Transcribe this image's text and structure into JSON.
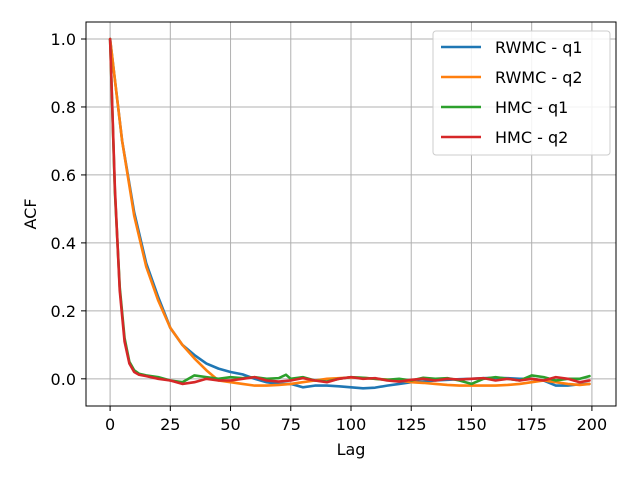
{
  "chart_data": {
    "type": "line",
    "title": "",
    "xlabel": "Lag",
    "ylabel": "ACF",
    "xlim": [
      -10,
      210
    ],
    "ylim": [
      -0.08,
      1.05
    ],
    "xticks": [
      0,
      25,
      50,
      75,
      100,
      125,
      150,
      175,
      200
    ],
    "yticks": [
      0.0,
      0.2,
      0.4,
      0.6,
      0.8,
      1.0
    ],
    "xtick_labels": [
      "0",
      "25",
      "50",
      "75",
      "100",
      "125",
      "150",
      "175",
      "200"
    ],
    "ytick_labels": [
      "0.0",
      "0.2",
      "0.4",
      "0.6",
      "0.8",
      "1.0"
    ],
    "grid": true,
    "legend_position": "top-right",
    "series": [
      {
        "name": "RWMC - q1",
        "color": "#1f77b4",
        "x": [
          0,
          5,
          10,
          15,
          20,
          25,
          30,
          35,
          40,
          45,
          50,
          55,
          60,
          65,
          70,
          75,
          80,
          85,
          90,
          95,
          100,
          105,
          110,
          115,
          120,
          125,
          130,
          135,
          140,
          145,
          150,
          155,
          160,
          165,
          170,
          175,
          180,
          185,
          190,
          195,
          199
        ],
        "y": [
          1.0,
          0.7,
          0.49,
          0.34,
          0.24,
          0.15,
          0.1,
          0.07,
          0.045,
          0.03,
          0.02,
          0.013,
          0.0,
          -0.01,
          -0.015,
          -0.015,
          -0.025,
          -0.02,
          -0.02,
          -0.022,
          -0.025,
          -0.028,
          -0.026,
          -0.02,
          -0.015,
          -0.01,
          -0.008,
          -0.005,
          -0.003,
          -0.001,
          0.0,
          0.002,
          0.003,
          0.002,
          0.0,
          0.0,
          -0.005,
          -0.02,
          -0.02,
          -0.016,
          -0.015
        ]
      },
      {
        "name": "RWMC - q2",
        "color": "#ff7f0e",
        "x": [
          0,
          5,
          10,
          15,
          20,
          25,
          30,
          35,
          40,
          45,
          50,
          55,
          60,
          65,
          70,
          75,
          80,
          85,
          90,
          95,
          100,
          105,
          110,
          115,
          120,
          125,
          130,
          135,
          140,
          145,
          150,
          155,
          160,
          165,
          170,
          175,
          180,
          185,
          190,
          195,
          199
        ],
        "y": [
          1.0,
          0.7,
          0.48,
          0.33,
          0.23,
          0.15,
          0.1,
          0.06,
          0.025,
          -0.005,
          -0.01,
          -0.015,
          -0.02,
          -0.02,
          -0.018,
          -0.015,
          -0.01,
          -0.005,
          0.0,
          0.002,
          0.004,
          0.003,
          0.0,
          -0.002,
          -0.005,
          -0.01,
          -0.012,
          -0.015,
          -0.018,
          -0.02,
          -0.02,
          -0.02,
          -0.02,
          -0.018,
          -0.015,
          -0.01,
          -0.005,
          -0.01,
          -0.015,
          -0.018,
          -0.015
        ]
      },
      {
        "name": "HMC - q1",
        "color": "#2ca02c",
        "x": [
          0,
          2,
          4,
          6,
          8,
          10,
          12,
          15,
          20,
          25,
          30,
          35,
          40,
          45,
          50,
          55,
          60,
          65,
          70,
          73,
          75,
          80,
          85,
          90,
          95,
          100,
          105,
          110,
          115,
          120,
          125,
          130,
          135,
          140,
          145,
          150,
          155,
          160,
          165,
          170,
          175,
          180,
          185,
          190,
          195,
          199
        ],
        "y": [
          1.0,
          0.55,
          0.27,
          0.12,
          0.05,
          0.025,
          0.015,
          0.01,
          0.005,
          -0.005,
          -0.01,
          0.01,
          0.005,
          0.0,
          0.005,
          0.002,
          0.005,
          0.0,
          0.002,
          0.012,
          0.0,
          0.005,
          -0.005,
          -0.008,
          0.0,
          0.005,
          0.003,
          0.0,
          -0.003,
          0.0,
          -0.005,
          0.003,
          0.0,
          0.002,
          -0.005,
          -0.015,
          0.0,
          0.005,
          0.0,
          -0.005,
          0.01,
          0.005,
          -0.005,
          0.0,
          0.0,
          0.008
        ]
      },
      {
        "name": "HMC - q2",
        "color": "#d62728",
        "x": [
          0,
          2,
          4,
          6,
          8,
          10,
          12,
          15,
          20,
          25,
          30,
          35,
          40,
          45,
          50,
          55,
          60,
          65,
          70,
          75,
          80,
          85,
          90,
          95,
          100,
          105,
          110,
          115,
          120,
          125,
          130,
          135,
          140,
          145,
          150,
          155,
          160,
          165,
          170,
          175,
          180,
          185,
          190,
          195,
          199
        ],
        "y": [
          1.0,
          0.56,
          0.26,
          0.11,
          0.045,
          0.02,
          0.012,
          0.008,
          0.0,
          -0.005,
          -0.015,
          -0.01,
          0.0,
          -0.005,
          -0.005,
          0.0,
          0.005,
          -0.005,
          -0.008,
          -0.005,
          0.002,
          -0.005,
          -0.01,
          0.0,
          0.005,
          0.0,
          0.002,
          -0.005,
          -0.008,
          -0.003,
          0.0,
          -0.005,
          0.0,
          -0.002,
          0.0,
          0.002,
          -0.005,
          0.0,
          -0.005,
          0.0,
          -0.005,
          0.005,
          0.0,
          -0.01,
          -0.005
        ]
      }
    ]
  }
}
